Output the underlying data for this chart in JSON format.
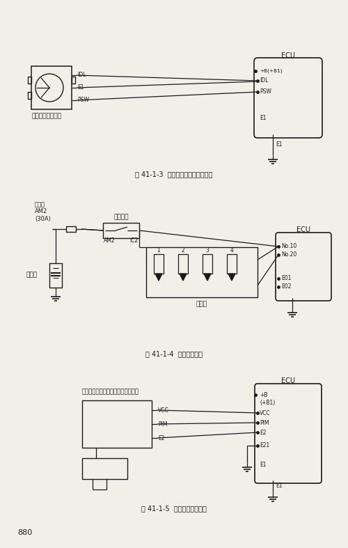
{
  "bg_color": "#f2efe9",
  "line_color": "#1a1a1a",
  "text_color": "#1a1a1a",
  "page_number": "880",
  "diagram1": {
    "caption": "图 41-1-3  节气门位置传感器电路图",
    "sensor_label": "节气门位置传感器",
    "sensor_pins": [
      "IDL",
      "E1",
      "PSW"
    ],
    "ecu_label": "ECU",
    "ecu_pins": [
      "+B(+B1)",
      "IDL",
      "PSW",
      "E1"
    ]
  },
  "diagram2": {
    "caption": "图 41-1-4  喷油器电路图",
    "switch_label": "点火开关",
    "switch_pins": [
      "AM2",
      "IC2"
    ],
    "fuse_label": "保险丝\nAM2\n(30A)",
    "battery_label": "蓄电池",
    "injector_label": "喷油器",
    "injector_nums": [
      "1",
      "2",
      "3",
      "4"
    ],
    "ecu_label": "ECU",
    "ecu_pins": [
      "No.10",
      "No.20",
      "E01",
      "E02"
    ]
  },
  "diagram3": {
    "caption": "图 41-1-5  真空传感器电路图",
    "sensor_label": "真空传感器（歧管绝对压力传感器）",
    "sensor_pins": [
      "VCC",
      "PIM",
      "E2"
    ],
    "ecu_label": "ECU",
    "ecu_pins": [
      "+B",
      "(+B1)",
      "VCC",
      "PIM",
      "E2",
      "E21",
      "E1"
    ]
  }
}
